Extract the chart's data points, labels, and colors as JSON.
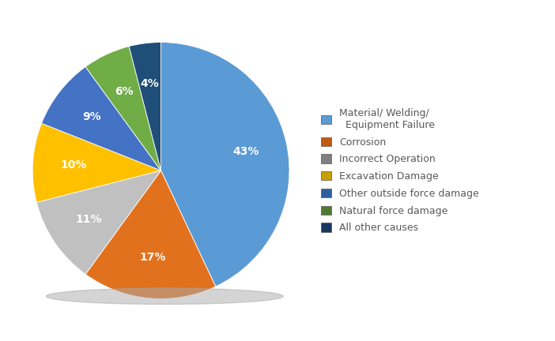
{
  "labels": [
    "Material/ Welding/\nEquipment Failure",
    "Corrosion",
    "Incorrect Operation",
    "Excavation Damage",
    "Other outside force damage",
    "Natural force damage",
    "All other causes"
  ],
  "values": [
    43,
    17,
    11,
    10,
    9,
    6,
    4
  ],
  "colors": [
    "#5B9BD5",
    "#E2711D",
    "#C0C0C0",
    "#FFC000",
    "#4472C4",
    "#70AD47",
    "#1F4E79"
  ],
  "legend_labels": [
    "Material/ Welding/\n  Equipment Failure",
    "Corrosion",
    "Incorrect Operation",
    "Excavation Damage",
    "Other outside force damage",
    "Natural force damage",
    "All other causes"
  ],
  "legend_colors": [
    "#5B9BD5",
    "#C05A13",
    "#808080",
    "#C8A000",
    "#2E5E9E",
    "#507A30",
    "#17375E"
  ],
  "startangle": 90,
  "background_color": "#FFFFFF",
  "text_color": "#595959",
  "pct_fontsize": 10,
  "legend_fontsize": 9
}
